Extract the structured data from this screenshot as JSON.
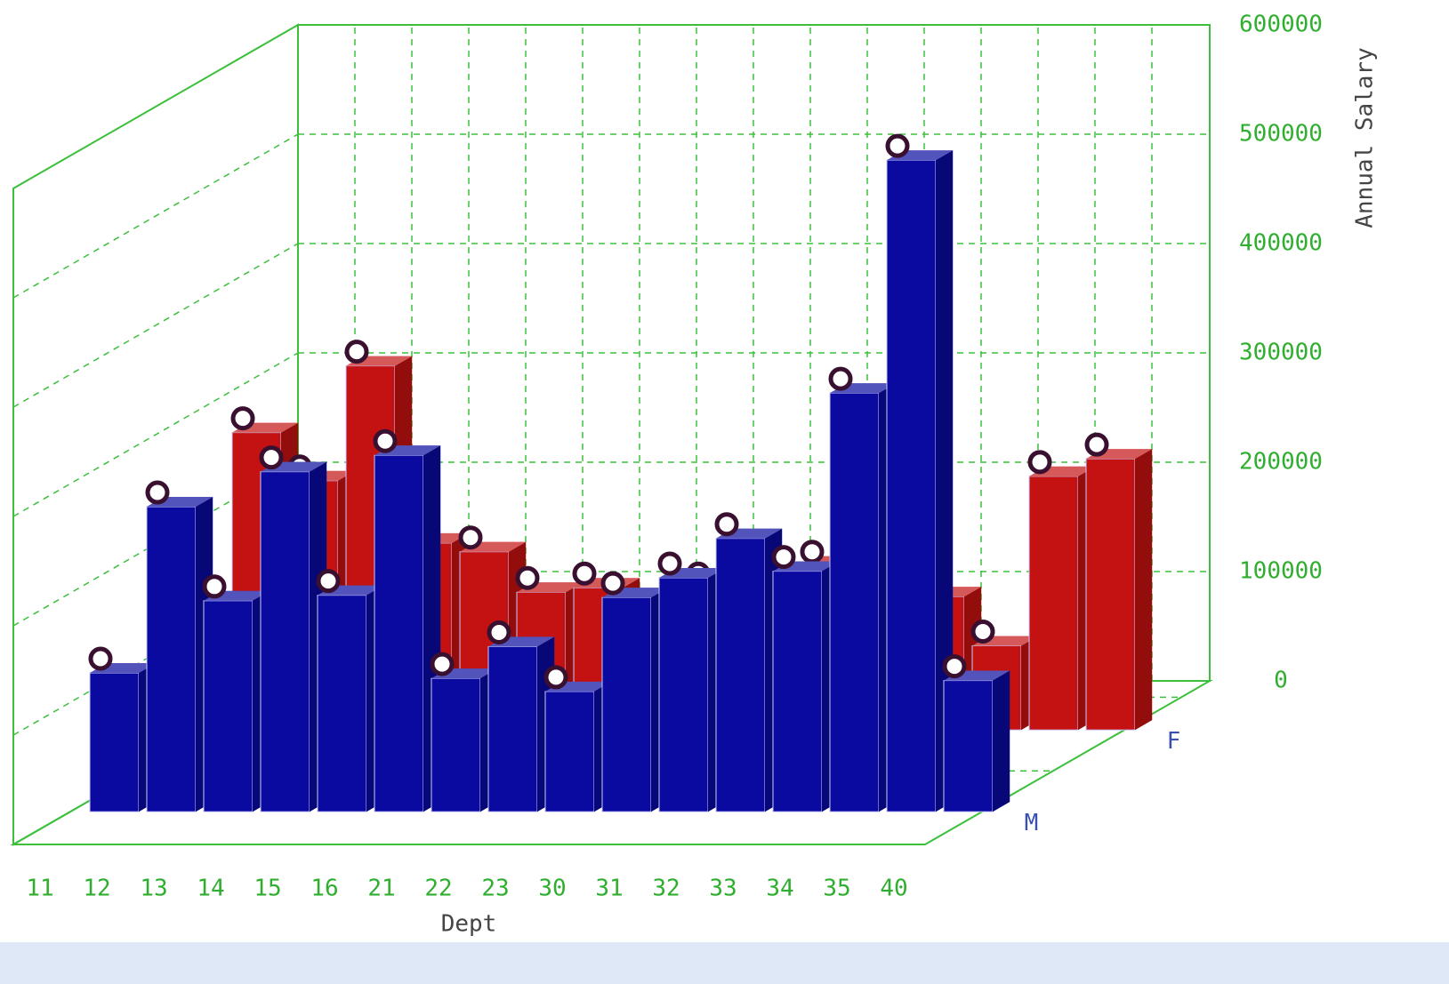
{
  "chart_data": {
    "type": "bar3d",
    "categories": [
      "11",
      "12",
      "13",
      "14",
      "15",
      "16",
      "21",
      "22",
      "23",
      "30",
      "31",
      "32",
      "33",
      "34",
      "35",
      "40"
    ],
    "series": [
      {
        "name": "M",
        "color": "#0a0aa0",
        "values": [
          127000,
          279000,
          193000,
          311000,
          198000,
          326000,
          122000,
          151000,
          110000,
          196000,
          214000,
          250000,
          220000,
          383000,
          596000,
          120000
        ]
      },
      {
        "name": "F",
        "color": "#c41212",
        "values": [
          272000,
          228000,
          333000,
          171000,
          163000,
          126000,
          130000,
          106000,
          130000,
          106000,
          150000,
          276000,
          122000,
          77000,
          232000,
          248000
        ]
      }
    ],
    "xlabel": "Dept",
    "ylabel": "Annual Salary",
    "ylim": [
      0,
      600000
    ],
    "yticks": [
      0,
      100000,
      200000,
      300000,
      400000,
      500000,
      600000
    ],
    "grid": true
  }
}
